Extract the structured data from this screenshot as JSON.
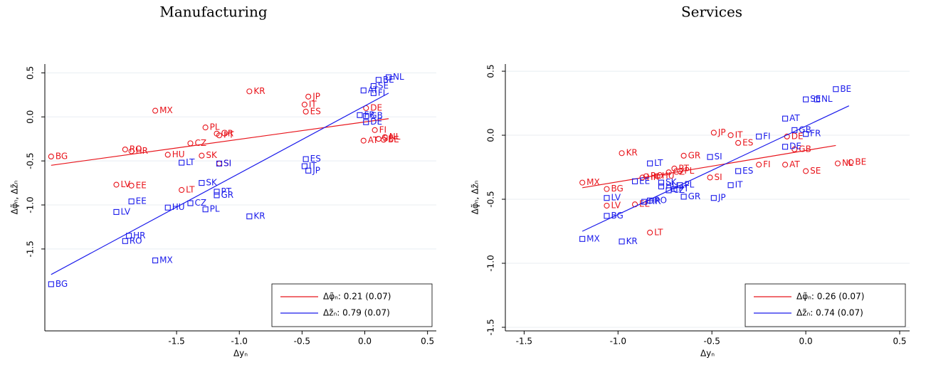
{
  "chart_data": [
    {
      "type": "scatter",
      "title": "Manufacturing",
      "x_label": "Δyₙ",
      "y_label": "Δφ̃ₙ, Δz̃ₙ",
      "xlim": [
        -2.55,
        0.57
      ],
      "ylim": [
        -2.43,
        0.6
      ],
      "xticks": [
        -1.5,
        {
          "value": -1,
          "label": "-1.0"
        },
        -0.5,
        {
          "value": 0,
          "label": "0.0"
        },
        0.5
      ],
      "yticks": [
        0.5,
        {
          "value": 0,
          "label": "0.0"
        },
        -0.5,
        {
          "value": -1,
          "label": "-1.0"
        },
        -1.5
      ],
      "grid": true,
      "legend": "lower right",
      "series": [
        {
          "name": "Δφ̃ₙ: 0.21 (0.07)",
          "color": "#e8141b",
          "marker": "circle",
          "labels": [
            "BG",
            "MX",
            "KR",
            "JP",
            "IT",
            "ES",
            "DE",
            "LV",
            "EE",
            "RO",
            "HR",
            "HU",
            "LT",
            "CZ",
            "PL",
            "GR",
            "PT",
            "SK",
            "SI",
            "FI",
            "NL",
            "SE",
            "BE",
            "AT"
          ],
          "x": [
            -2.5,
            -1.67,
            -0.92,
            -0.45,
            -0.48,
            -0.47,
            0.01,
            -1.98,
            -1.86,
            -1.91,
            -1.86,
            -1.57,
            -1.46,
            -1.39,
            -1.27,
            -1.18,
            -1.16,
            -1.3,
            -1.16,
            0.08,
            0.16,
            0.11,
            0.15,
            -0.01
          ],
          "values": [
            -0.45,
            0.07,
            0.29,
            0.23,
            0.14,
            0.06,
            0.1,
            -0.77,
            -0.78,
            -0.37,
            -0.39,
            -0.43,
            -0.83,
            -0.3,
            -0.12,
            -0.19,
            -0.21,
            -0.44,
            -0.53,
            -0.15,
            -0.23,
            -0.25,
            -0.26,
            -0.27
          ],
          "fit_x": [
            -2.5,
            0.19
          ],
          "fit_values": [
            -0.55,
            -0.02
          ]
        },
        {
          "name": "Δz̃ₙ: 0.79 (0.07)",
          "color": "#1a1aeb",
          "marker": "square",
          "labels": [
            "BG",
            "MX",
            "RO",
            "HR",
            "LV",
            "EE",
            "HU",
            "CZ",
            "PL",
            "SK",
            "PT",
            "GR",
            "LT",
            "SI",
            "KR",
            "ES",
            "IT",
            "JP",
            "DE",
            "FR",
            "GB",
            "AT",
            "SE",
            "FI",
            "BE",
            "NL"
          ],
          "x": [
            -2.5,
            -1.67,
            -1.91,
            -1.88,
            -1.98,
            -1.86,
            -1.57,
            -1.39,
            -1.27,
            -1.3,
            -1.18,
            -1.18,
            -1.46,
            -1.16,
            -0.92,
            -0.47,
            -0.48,
            -0.45,
            0.01,
            -0.04,
            0.01,
            -0.01,
            0.07,
            0.07,
            0.11,
            0.19
          ],
          "values": [
            -1.9,
            -1.63,
            -1.41,
            -1.35,
            -1.08,
            -0.96,
            -1.03,
            -0.98,
            -1.05,
            -0.75,
            -0.85,
            -0.89,
            -0.52,
            -0.53,
            -1.13,
            -0.48,
            -0.56,
            -0.61,
            -0.06,
            0.02,
            0.01,
            0.3,
            0.35,
            0.27,
            0.42,
            0.45
          ],
          "fit_x": [
            -2.5,
            0.19
          ],
          "fit_values": [
            -1.79,
            0.27
          ]
        }
      ]
    },
    {
      "type": "scatter",
      "title": "Services",
      "x_label": "Δyₙ",
      "y_label": "Δφ̃ₙ, Δz̃ₙ",
      "xlim": [
        -1.6,
        0.553
      ],
      "ylim": [
        -1.528,
        0.556
      ],
      "xticks": [
        -1.5,
        {
          "value": -1,
          "label": "-1.0"
        },
        -0.5,
        {
          "value": 0,
          "label": "0.0"
        },
        0.5
      ],
      "yticks": [
        0.5,
        {
          "value": 0,
          "label": "0.0"
        },
        -0.5,
        {
          "value": -1,
          "label": "-1.0"
        },
        -1.5
      ],
      "grid": true,
      "legend": "lower right",
      "series": [
        {
          "name": "Δφ̃ₙ: 0.26 (0.07)",
          "color": "#e8141b",
          "marker": "circle",
          "labels": [
            "MX",
            "KR",
            "BG",
            "LV",
            "EE",
            "LT",
            "GR",
            "JP",
            "IT",
            "ES",
            "DE",
            "GB",
            "FI",
            "SI",
            "AT",
            "SE",
            "NL",
            "BE",
            "PT",
            "PL",
            "CZ",
            "RO",
            "HU",
            "HR"
          ],
          "x": [
            -1.19,
            -0.98,
            -1.06,
            -1.06,
            -0.91,
            -0.83,
            -0.65,
            -0.49,
            -0.4,
            -0.36,
            -0.1,
            -0.06,
            -0.25,
            -0.51,
            -0.11,
            0,
            0.17,
            0.24,
            -0.7,
            -0.67,
            -0.73,
            -0.85,
            -0.79,
            -0.87
          ],
          "values": [
            -0.37,
            -0.14,
            -0.42,
            -0.55,
            -0.54,
            -0.76,
            -0.16,
            0.02,
            0,
            -0.06,
            -0.01,
            -0.11,
            -0.23,
            -0.33,
            -0.23,
            -0.28,
            -0.22,
            -0.21,
            -0.26,
            -0.28,
            -0.29,
            -0.32,
            -0.32,
            -0.33
          ],
          "fit_x": [
            -1.19,
            0.16
          ],
          "fit_values": [
            -0.41,
            -0.08
          ]
        },
        {
          "name": "Δz̃ₙ: 0.74 (0.07)",
          "color": "#1a1aeb",
          "marker": "square",
          "labels": [
            "MX",
            "KR",
            "BG",
            "LV",
            "EE",
            "LT",
            "RO",
            "HR",
            "SK",
            "HU",
            "PL",
            "PT",
            "CZ",
            "GR",
            "SI",
            "JP",
            "IT",
            "ES",
            "FI",
            "AT",
            "GB",
            "FR",
            "DE",
            "SE",
            "NL",
            "BE"
          ],
          "x": [
            -1.19,
            -0.98,
            -1.06,
            -1.06,
            -0.91,
            -0.83,
            -0.83,
            -0.86,
            -0.77,
            -0.77,
            -0.67,
            -0.7,
            -0.73,
            -0.65,
            -0.51,
            -0.49,
            -0.4,
            -0.36,
            -0.25,
            -0.11,
            -0.06,
            0,
            -0.11,
            0,
            0.06,
            0.16
          ],
          "values": [
            -0.81,
            -0.83,
            -0.63,
            -0.49,
            -0.36,
            -0.22,
            -0.51,
            -0.52,
            -0.37,
            -0.4,
            -0.39,
            -0.42,
            -0.43,
            -0.48,
            -0.17,
            -0.49,
            -0.39,
            -0.28,
            -0.01,
            0.13,
            0.04,
            0.01,
            -0.09,
            0.28,
            0.28,
            0.36
          ],
          "fit_x": [
            -1.19,
            0.23
          ],
          "fit_values": [
            -0.75,
            0.23
          ]
        }
      ]
    }
  ]
}
